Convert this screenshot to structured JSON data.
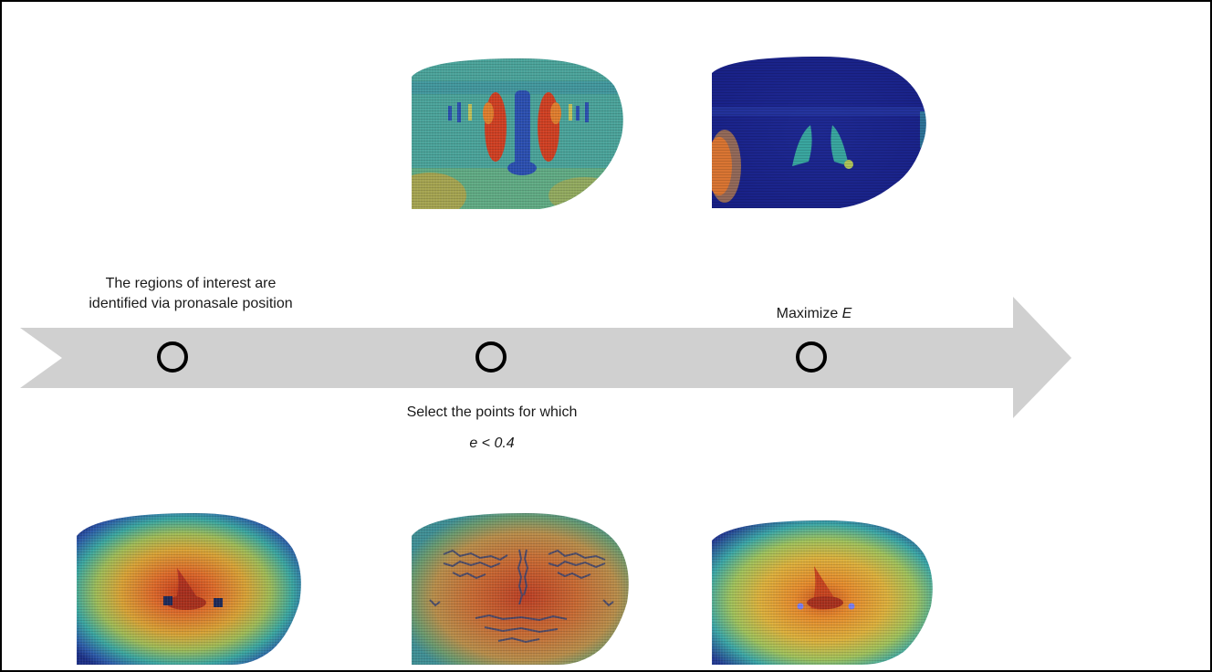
{
  "steps": [
    {
      "text_line1": "The regions of interest are",
      "text_line2": "identified via pronasale position"
    },
    {
      "text_line1": "Select the points for which",
      "text_line2_italic": "e < 0.4"
    },
    {
      "text_prefix": "Maximize ",
      "text_italic": "E"
    }
  ],
  "arrow_color": "#d0d0d0",
  "faces": [
    {
      "name": "top-curvature-map",
      "colormap": "curvature (jet)"
    },
    {
      "name": "top-detection-map",
      "colormap": "jet, mostly dark blue"
    },
    {
      "name": "bottom-depth-map-roi",
      "markers": "dark squares at alae"
    },
    {
      "name": "bottom-depth-map-selected-points",
      "markers": "dark point clusters"
    },
    {
      "name": "bottom-depth-map-result",
      "markers": "light-blue dots at alae"
    }
  ]
}
